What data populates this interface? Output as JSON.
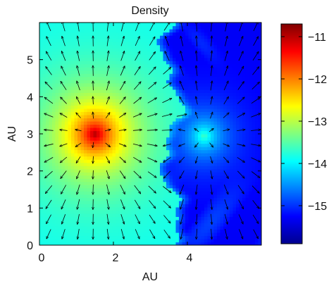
{
  "chart_data": [
    {
      "type": "heatmap",
      "title": "Density",
      "xlabel": "AU",
      "ylabel": "AU",
      "xlim": [
        0,
        6
      ],
      "ylim": [
        0,
        6
      ],
      "x_ticks": [
        0,
        2,
        4
      ],
      "y_ticks": [
        0,
        1,
        2,
        3,
        4,
        5
      ],
      "colormap": "jet",
      "colorbar": {
        "range": [
          -15.9,
          -10.7
        ],
        "ticks": [
          -11,
          -12,
          -13,
          -14,
          -15
        ],
        "tick_labels": [
          "−11",
          "−12",
          "−13",
          "−14",
          "−15"
        ]
      },
      "sources": [
        {
          "x": 1.5,
          "y": 3.0,
          "peak_value": -10.9
        },
        {
          "x": 4.45,
          "y": 2.95,
          "peak_value": -13.6
        }
      ],
      "background_value_left": -13.9,
      "background_value_right": -15.3,
      "vector_field": {
        "type": "radial outflow",
        "centers": [
          [
            1.5,
            3.0
          ],
          [
            4.45,
            2.95
          ]
        ]
      },
      "grid": false,
      "legend": "none"
    }
  ]
}
